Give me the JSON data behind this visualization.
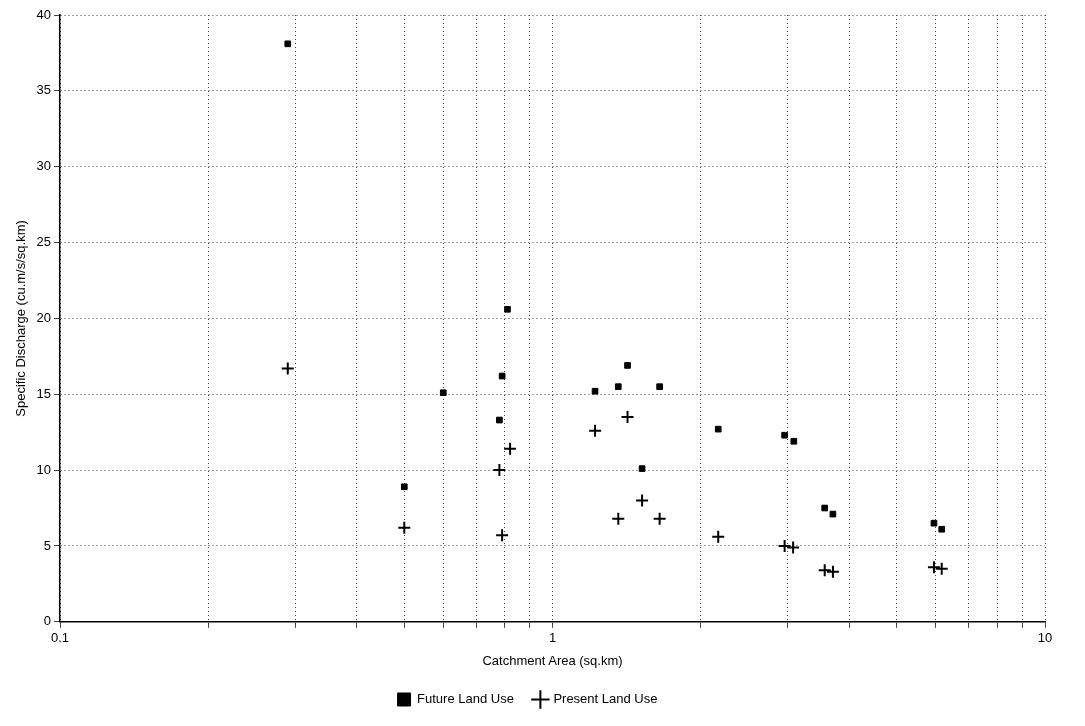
{
  "chart_data": {
    "type": "scatter",
    "xlabel": "Catchment Area (sq.km)",
    "ylabel": "Specific Discharge (cu.m/s/sq.km)",
    "log": "x",
    "xlim": [
      0.1,
      10
    ],
    "xticks": [
      0.1,
      {
        "value": 0.2,
        "label": null
      },
      {
        "value": 0.3,
        "label": null
      },
      {
        "value": 0.4,
        "label": null
      },
      {
        "value": 0.5,
        "label": null
      },
      {
        "value": 0.6,
        "label": null
      },
      {
        "value": 0.7,
        "label": null
      },
      {
        "value": 0.8,
        "label": null
      },
      {
        "value": 0.9,
        "label": null
      },
      1,
      {
        "value": 2,
        "label": null
      },
      {
        "value": 3,
        "label": null
      },
      {
        "value": 4,
        "label": null
      },
      {
        "value": 5,
        "label": null
      },
      {
        "value": 6,
        "label": null
      },
      {
        "value": 7,
        "label": null
      },
      {
        "value": 8,
        "label": null
      },
      {
        "value": 9,
        "label": null
      },
      10
    ],
    "ylim": [
      0,
      40
    ],
    "yticks": [
      0,
      5,
      10,
      15,
      20,
      25,
      30,
      35,
      40
    ],
    "grid": true,
    "line_style": "dotted",
    "legend": "bottom",
    "series": [
      {
        "name": "Future Land Use",
        "color": "#000000",
        "marker": "square",
        "x": [
          0.29,
          0.5,
          0.6,
          0.78,
          0.79,
          0.81,
          1.22,
          1.36,
          1.42,
          1.52,
          1.65,
          2.17,
          2.96,
          3.09,
          3.57,
          3.71,
          5.95,
          6.17
        ],
        "values": [
          38.1,
          8.9,
          15.1,
          13.3,
          16.2,
          20.6,
          15.2,
          15.5,
          16.9,
          10.1,
          15.5,
          12.7,
          12.3,
          11.9,
          7.5,
          7.1,
          6.5,
          6.1
        ]
      },
      {
        "name": "Present Land Use",
        "color": "#000000",
        "marker": "cross",
        "x": [
          0.29,
          0.5,
          0.78,
          0.79,
          0.82,
          1.22,
          1.36,
          1.42,
          1.52,
          1.65,
          2.17,
          2.96,
          3.08,
          3.57,
          3.71,
          5.95,
          6.17
        ],
        "values": [
          16.7,
          6.2,
          10.0,
          5.7,
          11.4,
          12.6,
          6.8,
          13.5,
          8.0,
          6.8,
          5.6,
          5.0,
          4.9,
          3.4,
          3.3,
          3.6,
          3.5
        ]
      }
    ]
  }
}
